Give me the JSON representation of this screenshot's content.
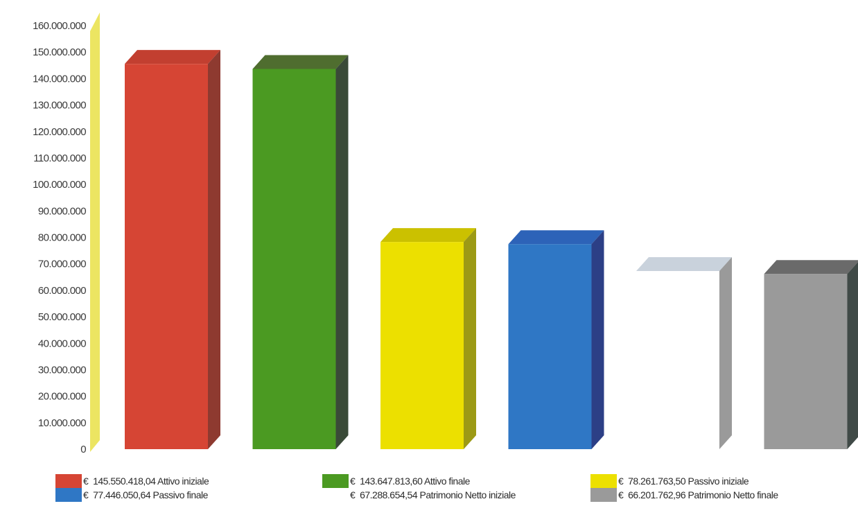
{
  "chart_data": {
    "type": "bar",
    "title": "",
    "xlabel": "",
    "ylabel": "",
    "ylim": [
      0,
      160000000
    ],
    "yticks": [
      0,
      10000000,
      20000000,
      30000000,
      40000000,
      50000000,
      60000000,
      70000000,
      80000000,
      90000000,
      100000000,
      110000000,
      120000000,
      130000000,
      140000000,
      150000000,
      160000000
    ],
    "ytick_labels": [
      "0",
      "10.000.000",
      "20.000.000",
      "30.000.000",
      "40.000.000",
      "50.000.000",
      "60.000.000",
      "70.000.000",
      "80.000.000",
      "90.000.000",
      "100.000.000",
      "110.000.000",
      "120.000.000",
      "130.000.000",
      "140.000.000",
      "150.000.000",
      "160.000.000"
    ],
    "categories": [
      "Attivo iniziale",
      "Attivo finale",
      "Passivo iniziale",
      "Passivo finale",
      "Patrimonio Netto iniziale",
      "Patrimonio Netto finale"
    ],
    "values": [
      145550418.04,
      143647813.6,
      78261763.5,
      77446050.64,
      67288654.54,
      66201762.96
    ],
    "colors": [
      "#d64534",
      "#4b9a22",
      "#ece000",
      "#2f77c5",
      "#ffffff",
      "#9a9a9a"
    ],
    "side_colors": [
      "#8e3a30",
      "#3a4a38",
      "#9c9a15",
      "#2c3f86",
      "#9a9a9a",
      "#404a47"
    ],
    "top_colors": [
      "#c23f30",
      "#4f6d2f",
      "#cbc100",
      "#2d63b8",
      "#c9d2dc",
      "#6a6a6a"
    ],
    "wall_color": "#ece562",
    "grid": false,
    "legend_position": "bottom",
    "legend": [
      {
        "currency": "€",
        "amount": "145.550.418,04",
        "label": "Attivo iniziale"
      },
      {
        "currency": "€",
        "amount": "77.446.050,64",
        "label": "Passivo finale"
      },
      {
        "currency": "€",
        "amount": "143.647.813,60",
        "label": "Attivo finale"
      },
      {
        "currency": "€",
        "amount": "67.288.654,54",
        "label": "Patrimonio Netto iniziale"
      },
      {
        "currency": "€",
        "amount": "78.261.763,50",
        "label": "Passivo iniziale"
      },
      {
        "currency": "€",
        "amount": "66.201.762,96",
        "label": "Patrimonio Netto finale"
      }
    ]
  }
}
